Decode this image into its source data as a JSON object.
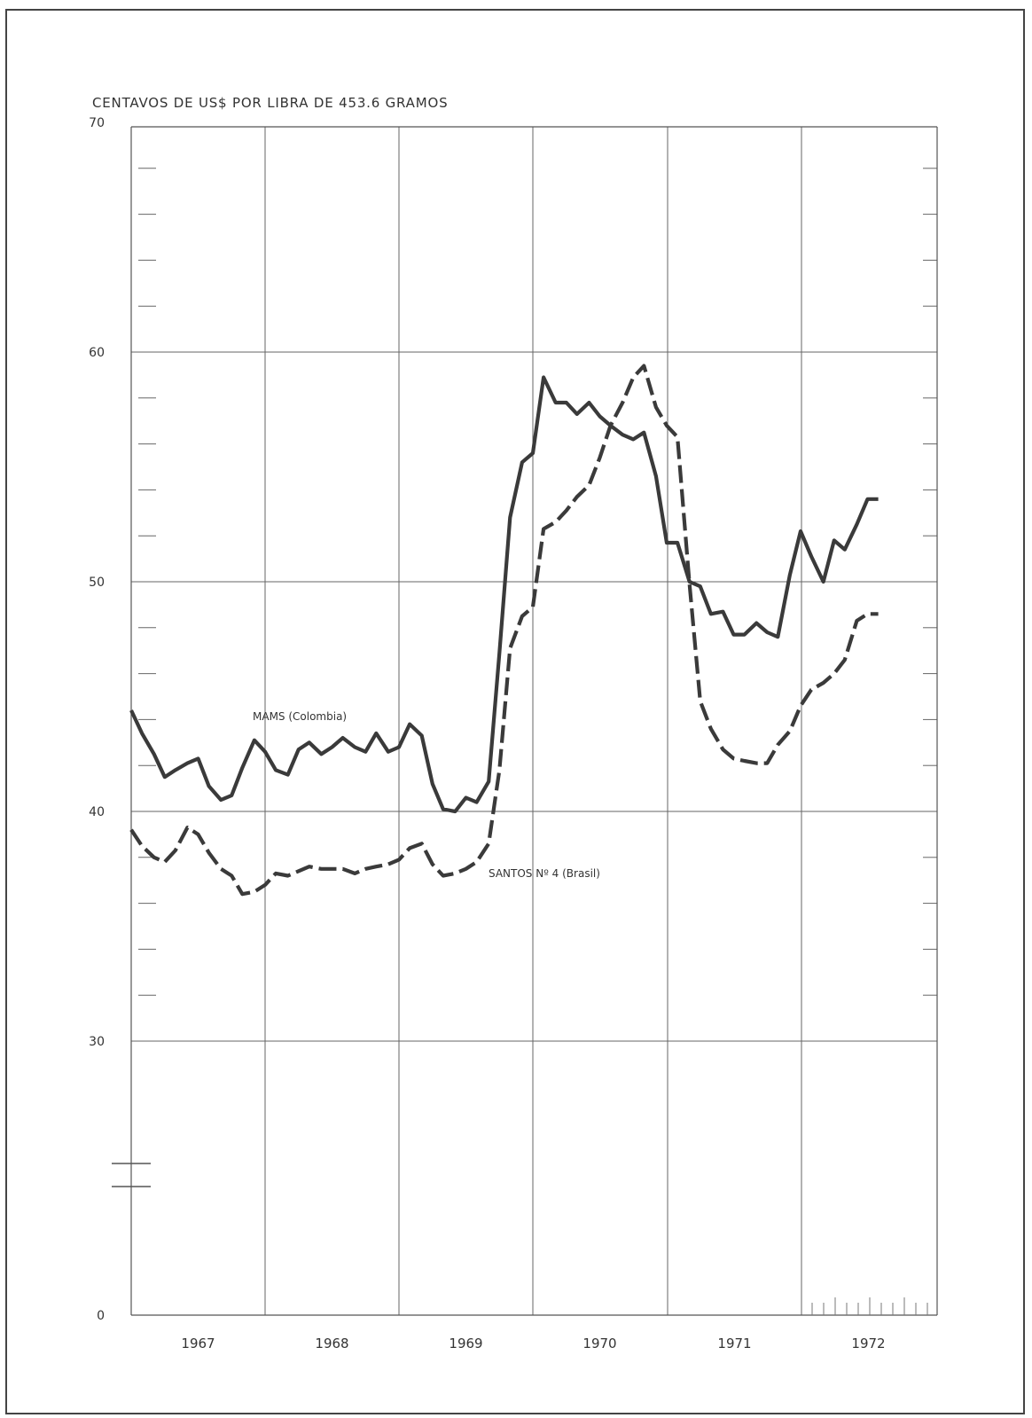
{
  "chart_data": {
    "type": "line",
    "title": "CENTAVOS DE US$ POR LIBRA DE 453.6 GRAMOS",
    "xlabel": "",
    "ylabel": "",
    "y_tick_labels": [
      "70",
      "60",
      "50",
      "40",
      "30",
      "0"
    ],
    "x_categories": [
      "1967",
      "1968",
      "1969",
      "1970",
      "1971",
      "1972"
    ],
    "broken_y_axis": true,
    "grid": true,
    "series": [
      {
        "name": "MAMS (Colombia)",
        "style": "solid",
        "x": [
          1966.5,
          1966.58,
          1966.67,
          1966.75,
          1966.83,
          1966.92,
          1967.0,
          1967.08,
          1967.17,
          1967.25,
          1967.33,
          1967.42,
          1967.5,
          1967.58,
          1967.67,
          1967.75,
          1967.83,
          1967.92,
          1968.0,
          1968.08,
          1968.17,
          1968.25,
          1968.33,
          1968.42,
          1968.5,
          1968.58,
          1968.67,
          1968.75,
          1968.83,
          1968.92,
          1969.0,
          1969.08,
          1969.17,
          1969.25,
          1969.33,
          1969.42,
          1969.5,
          1969.58,
          1969.67,
          1969.75,
          1969.83,
          1969.92,
          1970.0,
          1970.08,
          1970.17,
          1970.25,
          1970.33,
          1970.42,
          1970.5,
          1970.58,
          1970.67,
          1970.75,
          1970.83,
          1970.92,
          1971.0,
          1971.08,
          1971.17,
          1971.25,
          1971.33,
          1971.42,
          1971.5,
          1971.58,
          1971.67,
          1971.75,
          1971.83,
          1971.92,
          1972.0,
          1972.08
        ],
        "y": [
          44.4,
          43.4,
          42.5,
          41.5,
          41.8,
          42.1,
          42.3,
          41.1,
          40.5,
          40.7,
          41.9,
          43.1,
          42.6,
          41.8,
          41.6,
          42.7,
          43.0,
          42.5,
          42.8,
          43.2,
          42.8,
          42.6,
          43.4,
          42.6,
          42.8,
          43.8,
          43.3,
          41.2,
          40.1,
          40.0,
          40.6,
          40.4,
          41.3,
          46.9,
          52.8,
          55.2,
          55.6,
          58.9,
          57.8,
          57.8,
          57.3,
          57.8,
          57.2,
          56.8,
          56.4,
          56.2,
          56.5,
          54.6,
          51.7,
          51.7,
          50.0,
          49.8,
          48.6,
          48.7,
          47.7,
          47.7,
          48.2,
          47.8,
          47.6,
          50.3,
          52.2,
          51.1,
          50.0,
          51.8,
          51.4,
          52.5,
          53.6,
          53.6
        ],
        "label_position": "upper-left"
      },
      {
        "name": "SANTOS Nº 4 (Brasil)",
        "style": "dashed",
        "x": [
          1966.5,
          1966.58,
          1966.67,
          1966.75,
          1966.83,
          1966.92,
          1967.0,
          1967.08,
          1967.17,
          1967.25,
          1967.33,
          1967.42,
          1967.5,
          1967.58,
          1967.67,
          1967.75,
          1967.83,
          1967.92,
          1968.0,
          1968.08,
          1968.17,
          1968.25,
          1968.33,
          1968.42,
          1968.5,
          1968.58,
          1968.67,
          1968.75,
          1968.83,
          1968.92,
          1969.0,
          1969.08,
          1969.17,
          1969.25,
          1969.33,
          1969.42,
          1969.5,
          1969.58,
          1969.67,
          1969.75,
          1969.83,
          1969.92,
          1970.0,
          1970.08,
          1970.17,
          1970.25,
          1970.33,
          1970.42,
          1970.5,
          1970.58,
          1970.67,
          1970.75,
          1970.83,
          1970.92,
          1971.0,
          1971.08,
          1971.17,
          1971.25,
          1971.33,
          1971.42,
          1971.5,
          1971.58,
          1971.67,
          1971.75,
          1971.83,
          1971.92,
          1972.0,
          1972.08
        ],
        "y": [
          39.2,
          38.5,
          38.0,
          37.8,
          38.3,
          39.3,
          39.0,
          38.2,
          37.5,
          37.2,
          36.4,
          36.5,
          36.8,
          37.3,
          37.2,
          37.4,
          37.6,
          37.5,
          37.5,
          37.5,
          37.3,
          37.5,
          37.6,
          37.7,
          37.9,
          38.4,
          38.6,
          37.7,
          37.2,
          37.3,
          37.5,
          37.8,
          38.6,
          41.8,
          47.1,
          48.5,
          48.9,
          52.3,
          52.6,
          53.1,
          53.7,
          54.2,
          55.4,
          56.8,
          57.8,
          58.9,
          59.4,
          57.6,
          56.8,
          56.3,
          49.9,
          44.8,
          43.6,
          42.7,
          42.3,
          42.2,
          42.1,
          42.1,
          42.9,
          43.5,
          44.6,
          45.3,
          45.6,
          46.0,
          46.6,
          48.3,
          48.6,
          48.6
        ],
        "label_position": "center"
      }
    ]
  }
}
